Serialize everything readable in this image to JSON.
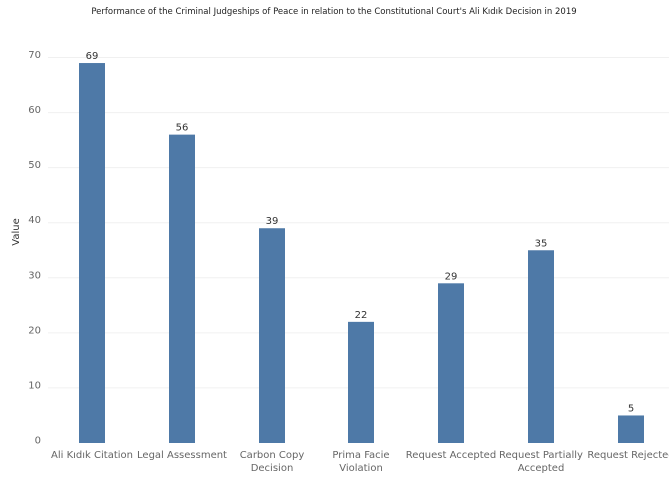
{
  "chart_data": {
    "type": "bar",
    "title": "Performance of the Criminal Judgeships of Peace in relation to the Constitutional Court's Ali Kıdık Decision in 2019",
    "xlabel": "",
    "ylabel": "Value",
    "categories": [
      [
        "Ali Kıdık Citation"
      ],
      [
        "Legal Assessment"
      ],
      [
        "Carbon Copy",
        "Decision"
      ],
      [
        "Prima Facie",
        "Violation"
      ],
      [
        "Request Accepted"
      ],
      [
        "Request Partially",
        "Accepted"
      ],
      [
        "Request Rejected"
      ]
    ],
    "values": [
      69,
      56,
      39,
      22,
      29,
      35,
      5
    ],
    "data_labels": [
      "69",
      "56",
      "39",
      "22",
      "29",
      "35",
      "5"
    ],
    "ylim": [
      0,
      75
    ],
    "yticks": [
      0,
      10,
      20,
      30,
      40,
      50,
      60,
      70
    ],
    "grid": true,
    "bar_color": "#4e79a7",
    "gridline_color": "#f0f0f0",
    "axis_text_color": "#666666",
    "label_color": "#333333"
  }
}
